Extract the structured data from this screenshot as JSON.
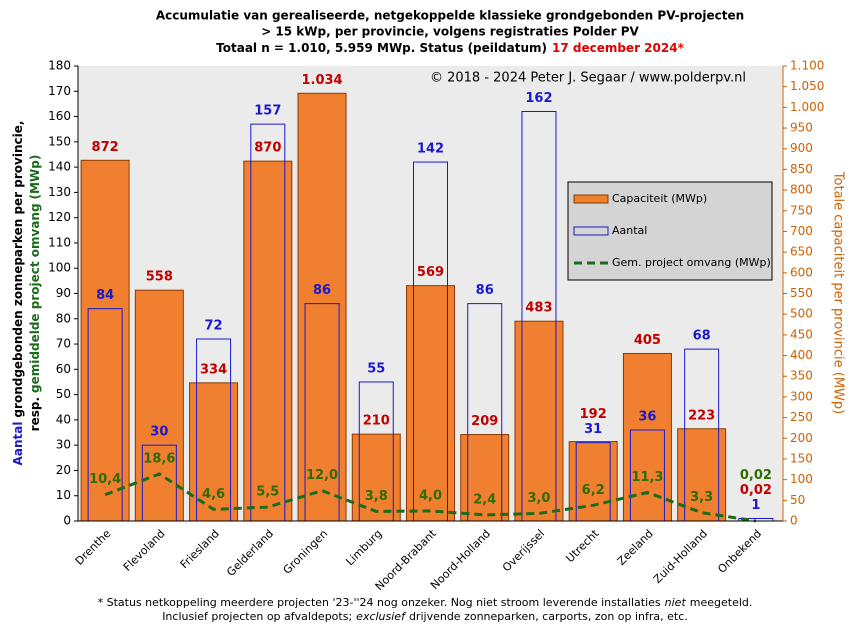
{
  "chart_data": {
    "type": "bar",
    "title_line1": "Accumulatie van gerealiseerde, netgekoppelde klassieke grondgebonden PV-projecten",
    "title_line2": "> 15 kWp, per provincie, volgens registraties Polder PV",
    "title_line3": "Totaal n = 1.010, 5.959 MWp. Status (peildatum)",
    "title_date": "17 december 2024*",
    "copyright": "© 2018 - 2024 Peter J. Segaar / www.polderpv.nl",
    "ylabel_line1": [
      "Aantal",
      "grondgebonden zonneparken per provincie,"
    ],
    "ylabel_line2": [
      "resp.",
      "gemiddelde project omvang",
      "(MWp)"
    ],
    "y2label": "Totale capaciteit per provincie (MWp)",
    "footnote_line1": [
      "* Status netkoppeling meerdere projecten '23-''24 nog onzeker. Nog niet stroom leverende installaties",
      "niet",
      "meegeteld."
    ],
    "footnote_line2": [
      "Inclusief projecten op afvaldepots;",
      "exclusief",
      "drijvende zonneparken, carports, zon op infra, etc."
    ],
    "categories": [
      "Drenthe",
      "Flevoland",
      "Friesland",
      "Gelderland",
      "Groningen",
      "Limburg",
      "Noord-Brabant",
      "Noord-Holland",
      "Overijssel",
      "Utrecht",
      "Zeeland",
      "Zuid-Holland",
      "Onbekend"
    ],
    "series": [
      {
        "name": "Capaciteit (MWp)",
        "color": "#f07f2f",
        "axis": "y2",
        "values": [
          872,
          558,
          334,
          870,
          1034,
          210,
          569,
          209,
          483,
          192,
          405,
          223,
          0.02
        ],
        "value_labels": [
          "872",
          "558",
          "334",
          "870",
          "1.034",
          "210",
          "569",
          "209",
          "483",
          "192",
          "405",
          "223",
          "0,02"
        ]
      },
      {
        "name": "Aantal",
        "color": "#1a1acc",
        "values": [
          84,
          30,
          72,
          157,
          86,
          55,
          142,
          86,
          162,
          31,
          36,
          68,
          1
        ]
      },
      {
        "name": "Gem. project omvang (MWp)",
        "color": "#1a6b1a",
        "values": [
          10.4,
          18.6,
          4.6,
          5.5,
          12.0,
          3.8,
          4.0,
          2.4,
          3.0,
          6.2,
          11.3,
          3.3,
          0.02
        ],
        "value_labels": [
          "10,4",
          "18,6",
          "4,6",
          "5,5",
          "12,0",
          "3,8",
          "4,0",
          "2,4",
          "3,0",
          "6,2",
          "11,3",
          "3,3",
          "0,02"
        ]
      }
    ],
    "ylim": [
      0,
      180
    ],
    "yticks": [
      0,
      10,
      20,
      30,
      40,
      50,
      60,
      70,
      80,
      90,
      100,
      110,
      120,
      130,
      140,
      150,
      160,
      170,
      180
    ],
    "y2lim": [
      0,
      1100
    ],
    "y2ticks": [
      0,
      50,
      100,
      150,
      200,
      250,
      300,
      350,
      400,
      450,
      500,
      550,
      600,
      650,
      700,
      750,
      800,
      850,
      900,
      950,
      {
        "value": 1000,
        "label": "1.000"
      },
      {
        "value": 1050,
        "label": "1.050"
      },
      {
        "value": 1100,
        "label": "1.100"
      }
    ],
    "legend": "right"
  }
}
